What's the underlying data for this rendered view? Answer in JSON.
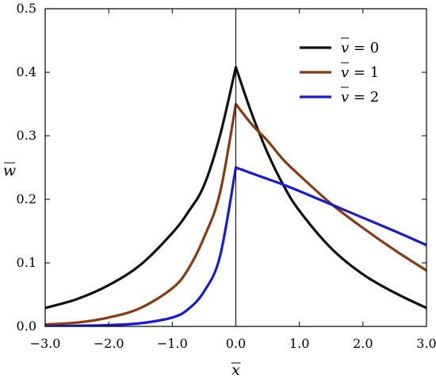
{
  "chart_data": {
    "type": "line",
    "xlabel": "x",
    "ylabel": "w",
    "xlim": [
      -3.0,
      3.0
    ],
    "ylim": [
      0.0,
      0.5
    ],
    "x_ticks": [
      -3.0,
      -2.0,
      -1.0,
      0.0,
      1.0,
      2.0,
      3.0
    ],
    "x_tick_labels": [
      "−3.0",
      "−2.0",
      "−1.0",
      "0.0",
      "1.0",
      "2.0",
      "3.0"
    ],
    "y_ticks": [
      0.0,
      0.1,
      0.2,
      0.3,
      0.4,
      0.5
    ],
    "y_tick_labels": [
      "0.0",
      "0.1",
      "0.2",
      "0.3",
      "0.4",
      "0.5"
    ],
    "grid": false,
    "legend_position": "top-right",
    "vertical_reference_line_x": 0.0,
    "series": [
      {
        "name": "v = 0",
        "legend_var": "v",
        "legend_rest": " = 0",
        "color": "#111111",
        "x": [
          -3.0,
          -2.5,
          -2.0,
          -1.5,
          -1.0,
          -0.75,
          -0.5,
          -0.25,
          0.0,
          0.25,
          0.5,
          0.75,
          1.0,
          1.5,
          2.0,
          2.5,
          3.0
        ],
        "y": [
          0.029,
          0.043,
          0.065,
          0.097,
          0.147,
          0.18,
          0.222,
          0.3,
          0.408,
          0.335,
          0.273,
          0.222,
          0.182,
          0.123,
          0.082,
          0.053,
          0.029
        ]
      },
      {
        "name": "v = 1",
        "legend_var": "v",
        "legend_rest": " = 1",
        "color": "#8b3a10",
        "x": [
          -3.0,
          -2.5,
          -2.0,
          -1.5,
          -1.0,
          -0.75,
          -0.5,
          -0.25,
          0.0,
          0.25,
          0.5,
          0.75,
          1.0,
          1.5,
          2.0,
          2.5,
          3.0
        ],
        "y": [
          0.003,
          0.006,
          0.014,
          0.029,
          0.06,
          0.09,
          0.14,
          0.21,
          0.35,
          0.318,
          0.292,
          0.262,
          0.238,
          0.193,
          0.155,
          0.12,
          0.088
        ]
      },
      {
        "name": "v = 2",
        "legend_var": "v",
        "legend_rest": " = 2",
        "color": "#1a1ad6",
        "x": [
          -3.0,
          -2.5,
          -2.0,
          -1.5,
          -1.0,
          -0.75,
          -0.5,
          -0.25,
          0.0,
          0.25,
          0.5,
          0.75,
          1.0,
          1.5,
          2.0,
          2.5,
          3.0
        ],
        "y": [
          0.0,
          0.001,
          0.002,
          0.005,
          0.014,
          0.027,
          0.055,
          0.11,
          0.25,
          0.241,
          0.232,
          0.223,
          0.213,
          0.192,
          0.171,
          0.15,
          0.128
        ]
      }
    ]
  }
}
